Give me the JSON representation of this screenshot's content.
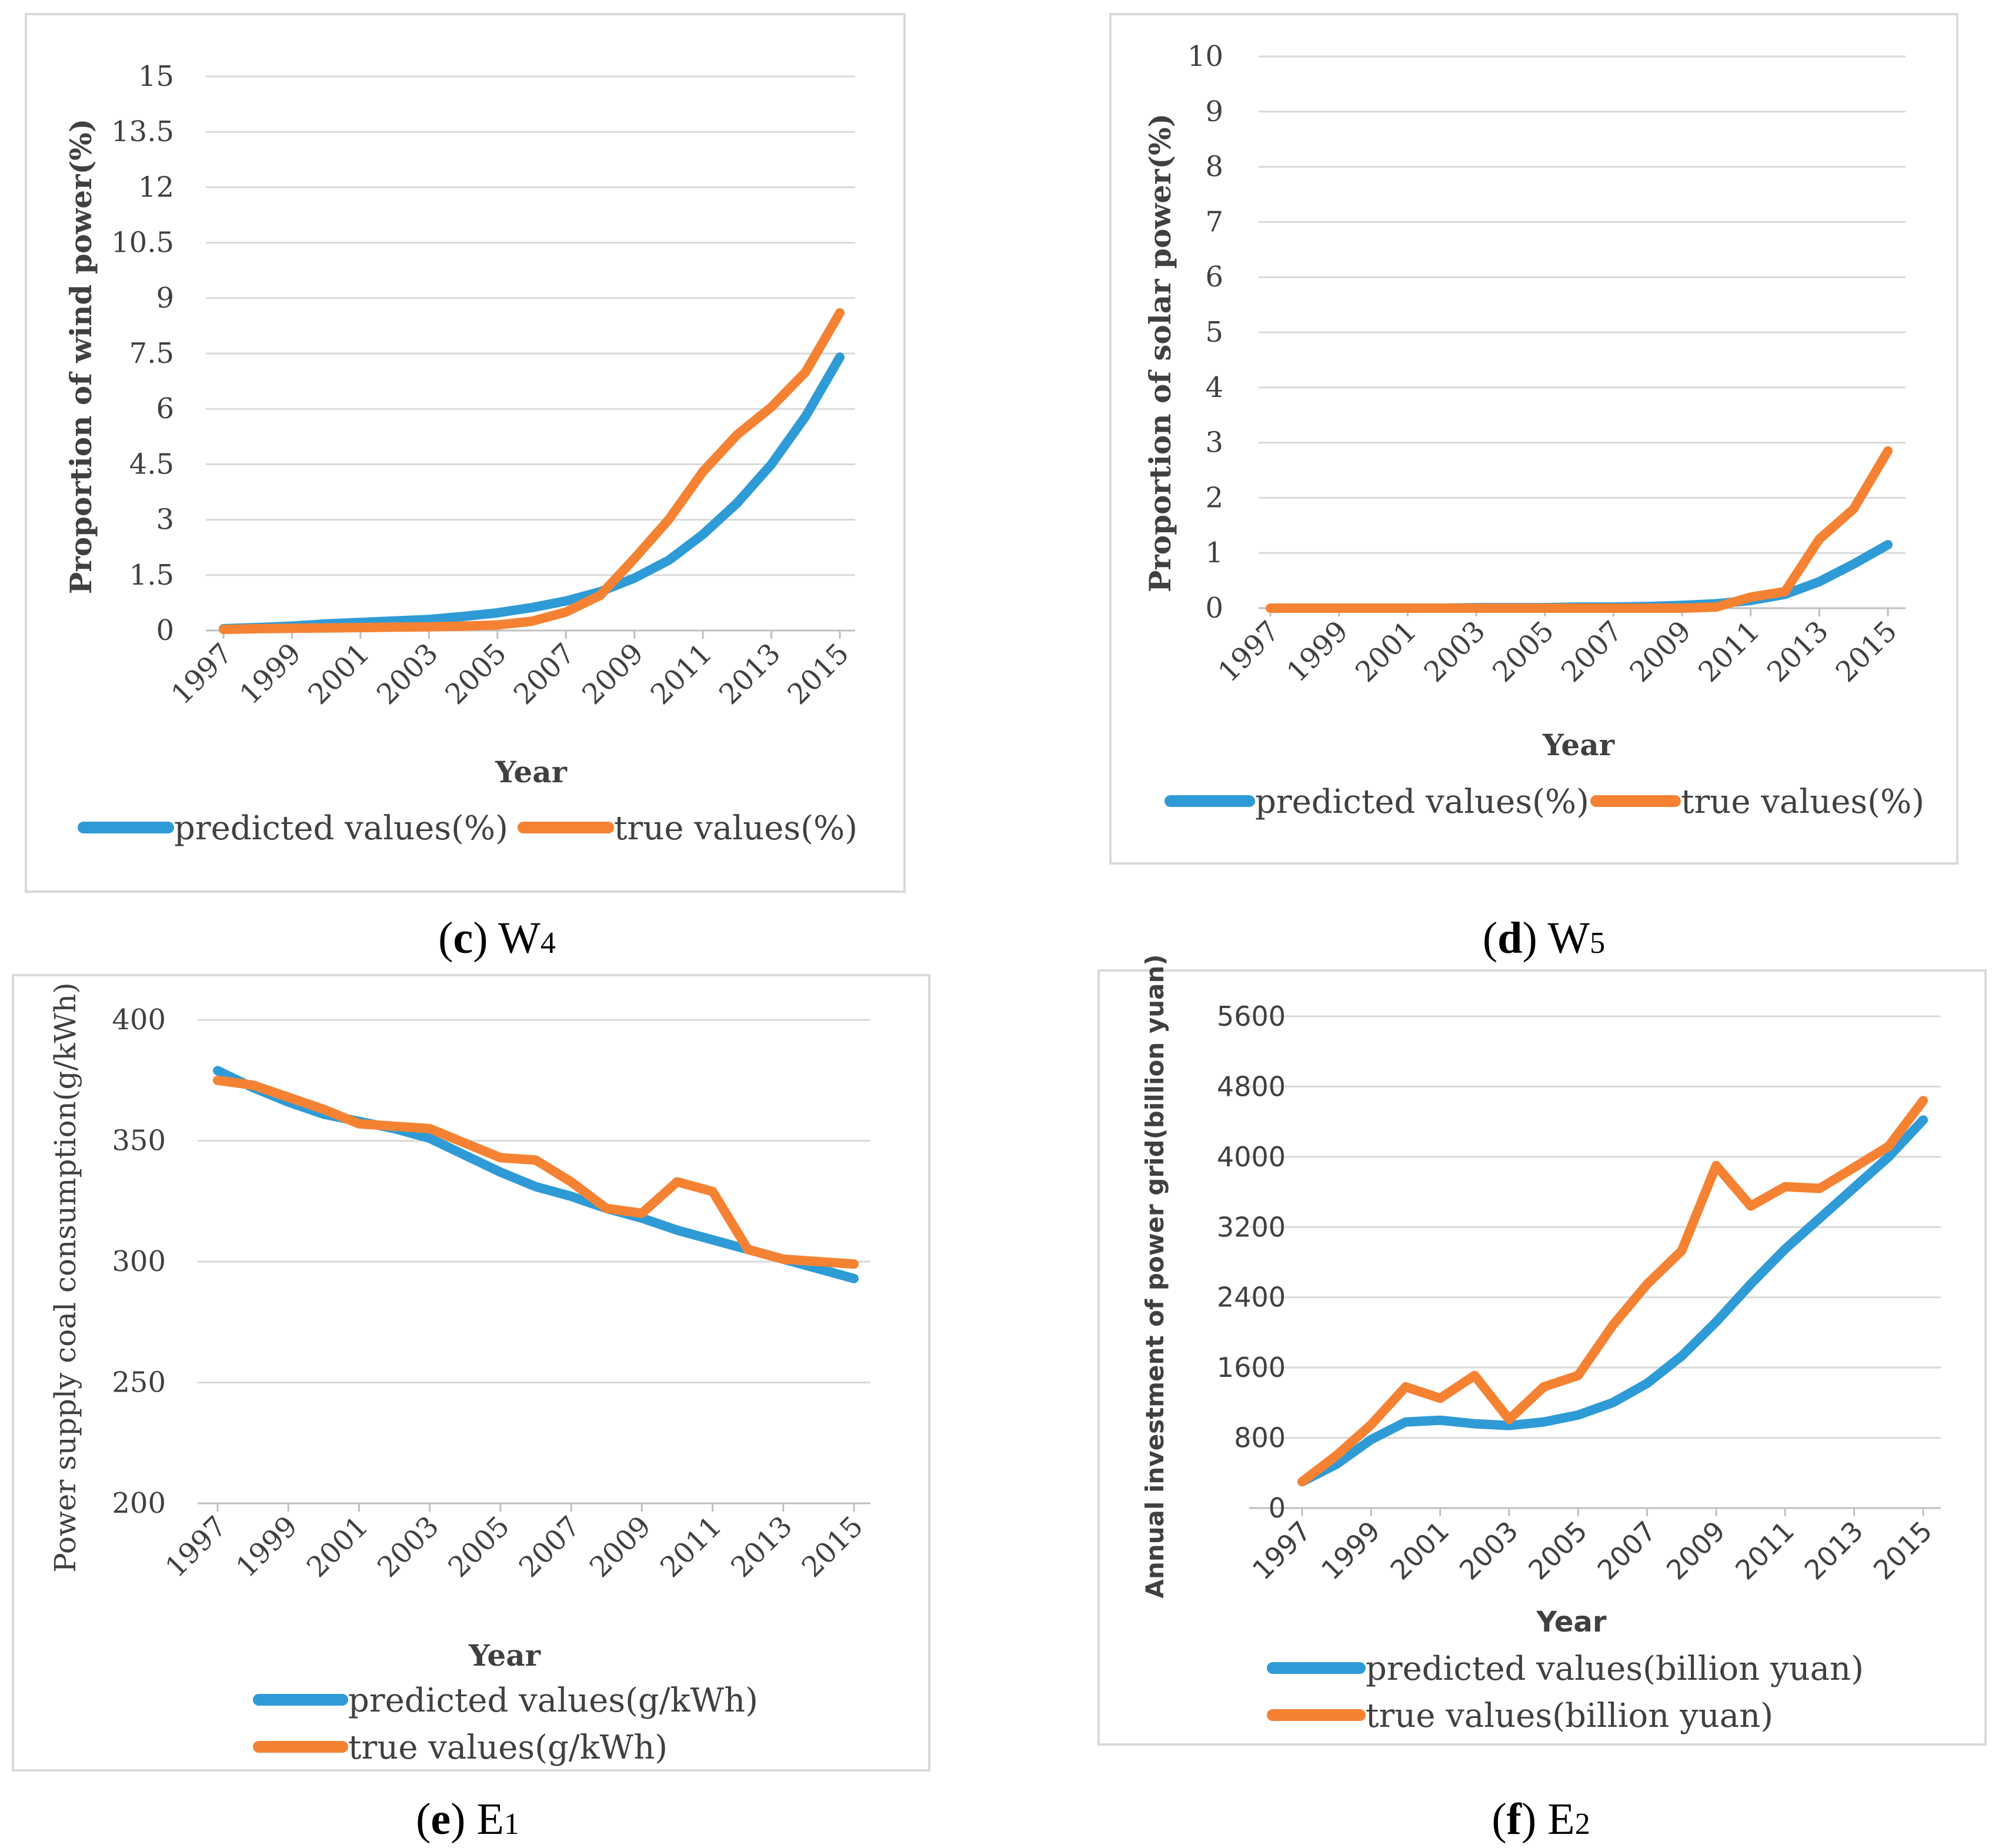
{
  "panels": [
    {
      "id": "c",
      "caption_letter": "c",
      "caption_var": "W",
      "caption_sub": "4",
      "colors": {
        "predicted": "#2F9BD6",
        "true": "#F58233"
      },
      "chart_data": {
        "type": "line",
        "title": "",
        "xlabel": "Year",
        "ylabel": "Proportion of wind power(%)",
        "ylim": [
          0,
          15
        ],
        "yticks": [
          "0",
          "1.5",
          "3",
          "4.5",
          "6",
          "7.5",
          "9",
          "10.5",
          "12",
          "13.5",
          "15"
        ],
        "xticks": [
          "1997",
          "1999",
          "2001",
          "2003",
          "2005",
          "2007",
          "2009",
          "2011",
          "2013",
          "2015"
        ],
        "x": [
          1997,
          1998,
          1999,
          2000,
          2001,
          2002,
          2003,
          2004,
          2005,
          2006,
          2007,
          2008,
          2009,
          2010,
          2011,
          2012,
          2013,
          2014,
          2015
        ],
        "series": [
          {
            "name": "predicted values(%)",
            "key": "predicted",
            "values": [
              0.05,
              0.08,
              0.12,
              0.18,
              0.22,
              0.26,
              0.3,
              0.38,
              0.48,
              0.62,
              0.8,
              1.05,
              1.42,
              1.9,
              2.6,
              3.45,
              4.5,
              5.8,
              7.4
            ]
          },
          {
            "name": "true values(%)",
            "key": "true",
            "values": [
              0.03,
              0.05,
              0.06,
              0.07,
              0.08,
              0.09,
              0.1,
              0.12,
              0.15,
              0.25,
              0.5,
              0.95,
              1.95,
              3.0,
              4.3,
              5.3,
              6.05,
              7.0,
              8.6
            ]
          }
        ],
        "legend": "bottom"
      }
    },
    {
      "id": "d",
      "caption_letter": "d",
      "caption_var": "W",
      "caption_sub": "5",
      "colors": {
        "predicted": "#2F9BD6",
        "true": "#F58233"
      },
      "chart_data": {
        "type": "line",
        "title": "",
        "xlabel": "Year",
        "ylabel": "Proportion of solar power(%)",
        "ylim": [
          0,
          10
        ],
        "yticks": [
          "0",
          "1",
          "2",
          "3",
          "4",
          "5",
          "6",
          "7",
          "8",
          "9",
          "10"
        ],
        "xticks": [
          "1997",
          "1999",
          "2001",
          "2003",
          "2005",
          "2007",
          "2009",
          "2011",
          "2013",
          "2015"
        ],
        "x": [
          1997,
          1998,
          1999,
          2000,
          2001,
          2002,
          2003,
          2004,
          2005,
          2006,
          2007,
          2008,
          2009,
          2010,
          2011,
          2012,
          2013,
          2014,
          2015
        ],
        "series": [
          {
            "name": "predicted values(%)",
            "key": "predicted",
            "values": [
              0.0,
              0.0,
              0.0,
              0.0,
              0.0,
              0.0,
              0.01,
              0.01,
              0.01,
              0.02,
              0.02,
              0.03,
              0.05,
              0.08,
              0.14,
              0.25,
              0.48,
              0.8,
              1.15
            ]
          },
          {
            "name": "true values(%)",
            "key": "true",
            "values": [
              0.0,
              0.0,
              0.0,
              0.0,
              0.0,
              0.0,
              0.0,
              0.0,
              0.0,
              0.0,
              0.0,
              0.0,
              0.0,
              0.02,
              0.2,
              0.3,
              1.25,
              1.8,
              2.85
            ]
          }
        ],
        "legend": "bottom"
      }
    },
    {
      "id": "e",
      "caption_letter": "e",
      "caption_var": "E",
      "caption_sub": "1",
      "colors": {
        "predicted": "#2F9BD6",
        "true": "#F58233"
      },
      "chart_data": {
        "type": "line",
        "title": "",
        "xlabel": "Year",
        "ylabel": "Power supply coal consumption(g/kWh)",
        "ylim": [
          200,
          400
        ],
        "yticks": [
          "200",
          "250",
          "300",
          "350",
          "400"
        ],
        "xticks": [
          "1997",
          "1999",
          "2001",
          "2003",
          "2005",
          "2007",
          "2009",
          "2011",
          "2013",
          "2015"
        ],
        "x": [
          1997,
          1998,
          1999,
          2000,
          2001,
          2002,
          2003,
          2004,
          2005,
          2006,
          2007,
          2008,
          2009,
          2010,
          2011,
          2012,
          2013,
          2014,
          2015
        ],
        "series": [
          {
            "name": "predicted values(g/kWh)",
            "key": "predicted",
            "values": [
              379,
              372,
              366,
              361,
              358,
              355,
              351,
              344,
              337,
              331,
              327,
              322,
              318,
              313,
              309,
              305,
              301,
              297,
              293
            ]
          },
          {
            "name": "true values(g/kWh)",
            "key": "true",
            "values": [
              375,
              373,
              368,
              363,
              357,
              356,
              355,
              349,
              343,
              342,
              333,
              322,
              320,
              333,
              329,
              305,
              301,
              300,
              299
            ]
          }
        ],
        "legend": "bottom"
      }
    },
    {
      "id": "f",
      "caption_letter": "f",
      "caption_var": "E",
      "caption_sub": "2",
      "colors": {
        "predicted": "#2F9BD6",
        "true": "#F58233"
      },
      "chart_data": {
        "type": "line",
        "title": "",
        "xlabel": "Year",
        "ylabel": "Annual investment of power grid(billion yuan)",
        "ylim": [
          0,
          5600
        ],
        "yticks": [
          "0",
          "800",
          "1600",
          "2400",
          "3200",
          "4000",
          "4800",
          "5600"
        ],
        "xticks": [
          "1997",
          "1999",
          "2001",
          "2003",
          "2005",
          "2007",
          "2009",
          "2011",
          "2013",
          "2015"
        ],
        "x": [
          1997,
          1998,
          1999,
          2000,
          2001,
          2002,
          2003,
          2004,
          2005,
          2006,
          2007,
          2008,
          2009,
          2010,
          2011,
          2012,
          2013,
          2014,
          2015
        ],
        "series": [
          {
            "name": "predicted values(billion yuan)",
            "key": "predicted",
            "values": [
              300,
              500,
              780,
              980,
              1000,
              960,
              940,
              980,
              1060,
              1200,
              1420,
              1730,
              2120,
              2550,
              2950,
              3300,
              3650,
              4000,
              4420
            ]
          },
          {
            "name": "true values(billion yuan)",
            "key": "true",
            "values": [
              300,
              600,
              950,
              1380,
              1250,
              1510,
              1010,
              1380,
              1510,
              2080,
              2550,
              2930,
              3900,
              3440,
              3660,
              3640,
              3880,
              4120,
              4640
            ]
          }
        ],
        "legend": "bottom"
      }
    }
  ]
}
